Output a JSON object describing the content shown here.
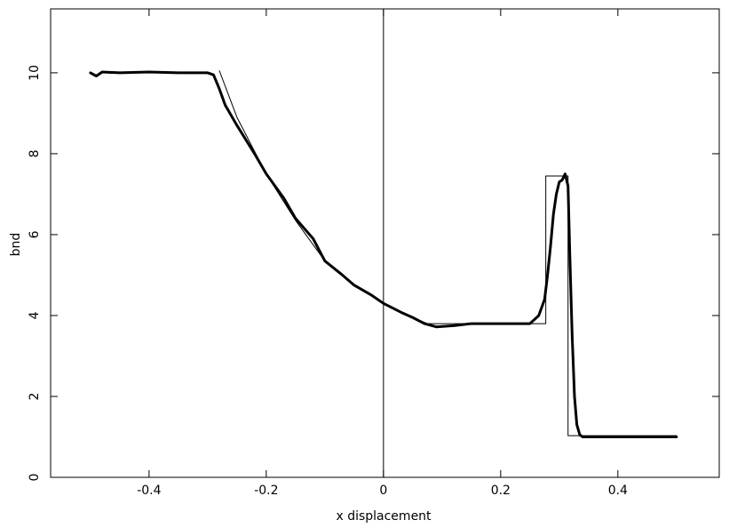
{
  "chart_data": {
    "type": "line",
    "xlabel": "x displacement",
    "ylabel": "bnd",
    "xlim": [
      -0.568,
      0.573
    ],
    "ylim": [
      0,
      11.58
    ],
    "xticks": [
      -0.4,
      -0.2,
      0,
      0.2,
      0.4
    ],
    "yticks": [
      0,
      2,
      4,
      6,
      8,
      10
    ],
    "series": [
      {
        "color": "#000000",
        "x": [
          -0.5,
          -0.49,
          -0.48,
          -0.45,
          -0.4,
          -0.35,
          -0.3,
          -0.29,
          -0.28,
          -0.27,
          -0.25,
          -0.22,
          -0.2,
          -0.17,
          -0.15,
          -0.12,
          -0.1,
          -0.07,
          -0.05,
          -0.02,
          0,
          0.03,
          0.05,
          0.07,
          0.09,
          0.12,
          0.15,
          0.2,
          0.25,
          0.265,
          0.275,
          0.28,
          0.285,
          0.29,
          0.295,
          0.3,
          0.305,
          0.31,
          0.315,
          0.318,
          0.322,
          0.326,
          0.33,
          0.335,
          0.34,
          0.4,
          0.45,
          0.5
        ],
        "values": [
          10.0,
          9.92,
          10.02,
          10.0,
          10.02,
          10.0,
          10.0,
          9.95,
          9.6,
          9.2,
          8.7,
          8.0,
          7.5,
          6.9,
          6.4,
          5.9,
          5.35,
          5.0,
          4.75,
          4.5,
          4.3,
          4.08,
          3.95,
          3.8,
          3.72,
          3.75,
          3.8,
          3.8,
          3.8,
          4.0,
          4.4,
          5.0,
          5.7,
          6.5,
          7.0,
          7.3,
          7.35,
          7.5,
          7.2,
          5.5,
          3.5,
          2.0,
          1.3,
          1.05,
          1.0,
          1.0,
          1.0,
          1.0
        ]
      },
      {
        "color": "#000000",
        "x": [
          -0.28,
          -0.25,
          -0.2,
          -0.15,
          -0.1,
          -0.05,
          0,
          0.05,
          0.075,
          0.277,
          0.277,
          0.315,
          0.315,
          0.5
        ],
        "values": [
          10.05,
          8.9,
          7.5,
          6.35,
          5.35,
          4.75,
          4.3,
          3.95,
          3.8,
          3.8,
          7.45,
          7.45,
          1.03,
          1.03
        ]
      }
    ]
  }
}
